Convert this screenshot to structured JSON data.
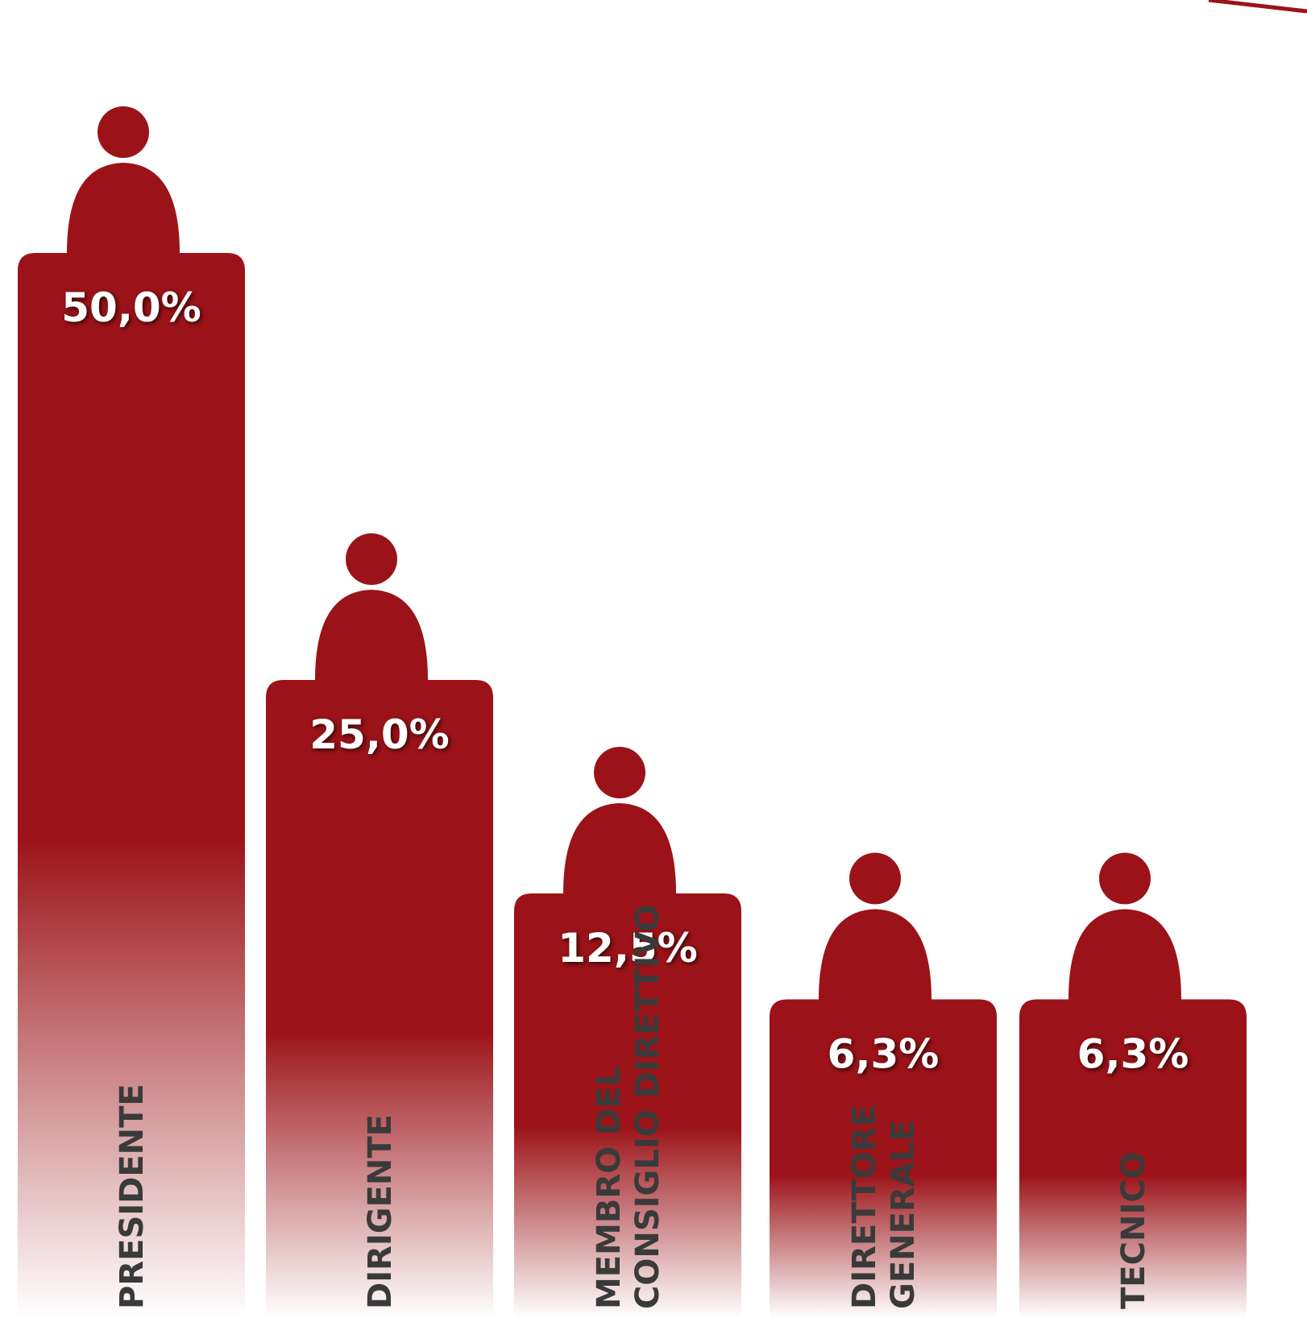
{
  "chart_data": {
    "type": "bar",
    "categories": [
      [
        "PRESIDENTE"
      ],
      [
        "DIRIGENTE"
      ],
      [
        "MEMBRO DEL",
        "CONSIGLIO DIRETTIVO"
      ],
      [
        "DIRETTORE",
        "GENERALE"
      ],
      [
        "TECNICO"
      ]
    ],
    "values": [
      50.0,
      25.0,
      12.5,
      6.3,
      6.3
    ],
    "value_labels": [
      "50,0%",
      "25,0%",
      "12,5%",
      "6,3%",
      "6,3%"
    ],
    "color": "#9b1318"
  }
}
